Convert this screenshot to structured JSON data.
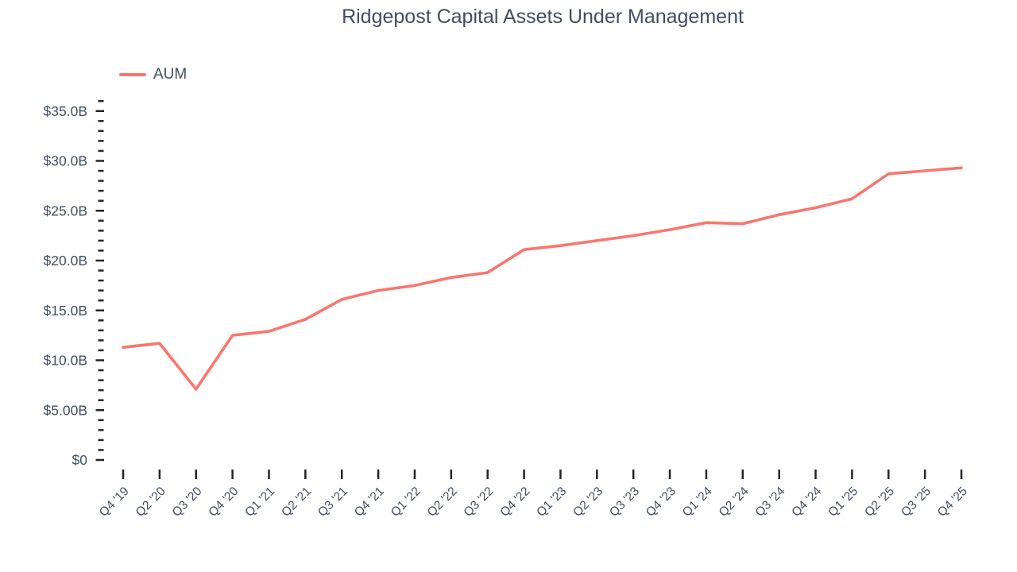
{
  "chart_data": {
    "type": "line",
    "title": "Ridgepost Capital Assets Under Management",
    "unit_hint": "$B",
    "categories": [
      "Q4 '19",
      "Q2 '20",
      "Q3 '20",
      "Q4 '20",
      "Q1 '21",
      "Q2 '21",
      "Q3 '21",
      "Q4 '21",
      "Q1 '22",
      "Q2 '22",
      "Q3 '22",
      "Q4 '22",
      "Q1 '23",
      "Q2 '23",
      "Q3 '23",
      "Q4 '23",
      "Q1 '24",
      "Q2 '24",
      "Q3 '24",
      "Q4 '24",
      "Q1 '25",
      "Q2 '25",
      "Q3 '25",
      "Q4 '25"
    ],
    "series": [
      {
        "name": "AUM",
        "values": [
          11.3,
          11.7,
          7.1,
          12.5,
          12.9,
          14.1,
          16.1,
          17.0,
          17.5,
          18.3,
          18.8,
          21.1,
          21.5,
          22.0,
          22.5,
          23.1,
          23.8,
          23.7,
          24.6,
          25.3,
          26.2,
          28.7,
          29.0,
          29.3
        ]
      }
    ],
    "y_tick_labels": [
      "$0",
      "$5.00B",
      "$10.0B",
      "$15.0B",
      "$20.0B",
      "$25.0B",
      "$30.0B",
      "$35.0B"
    ],
    "y_major_step": 5,
    "y_minor_step": 1,
    "ylim": [
      0,
      36
    ],
    "xlabel": "",
    "ylabel": "",
    "grid": false,
    "legend_position": "top-left",
    "colors": {
      "line": "#f9766e",
      "label_text": "#414e61",
      "tick_mark": "#20262e",
      "background": "#ffffff"
    }
  }
}
